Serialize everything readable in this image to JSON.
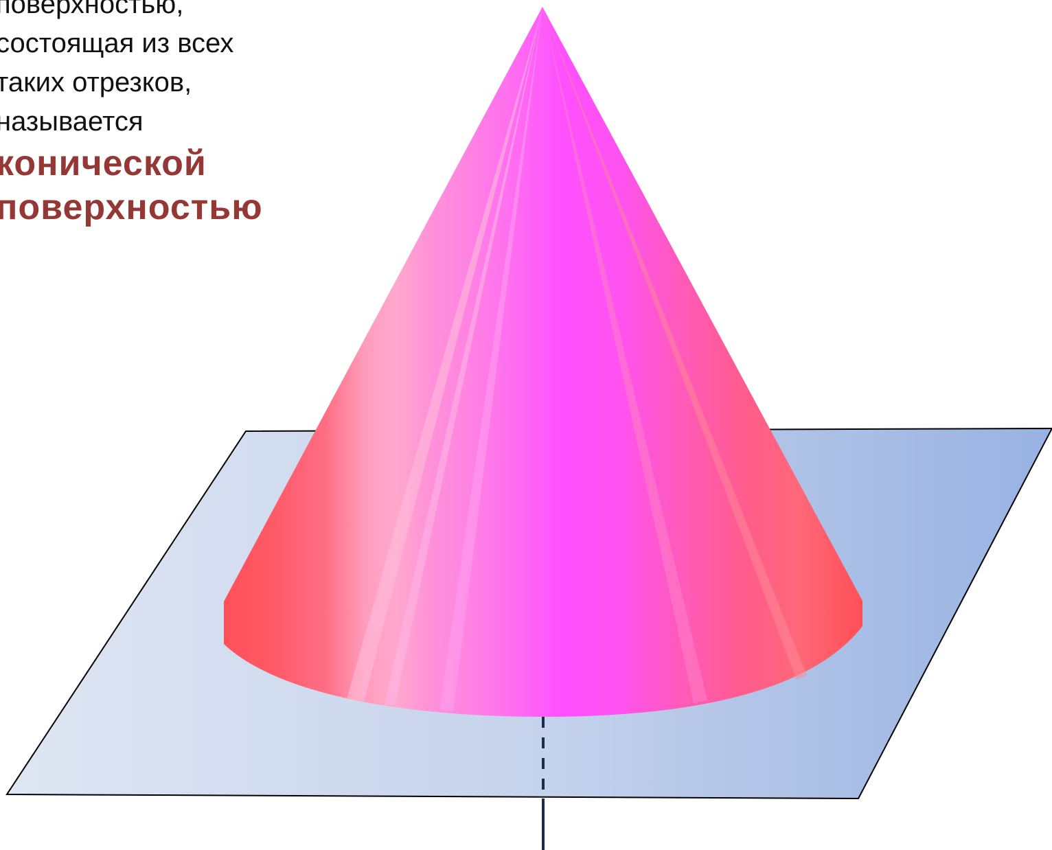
{
  "text": {
    "lines": [
      "поверхностью,",
      "состоящая из всех",
      "таких отрезков,",
      "называется"
    ],
    "term_lines": [
      "конической",
      "поверхностью"
    ]
  },
  "colors": {
    "cone_side": "#ff5060",
    "cone_center": "#ff50ff",
    "plane_light": "#dfe6f3",
    "plane_dark": "#98b2e2",
    "axis_line": "#1b2b50",
    "term_text": "#953735"
  },
  "icons": {
    "cone": "cone-icon",
    "plane": "plane-icon",
    "axis": "axis-icon"
  }
}
